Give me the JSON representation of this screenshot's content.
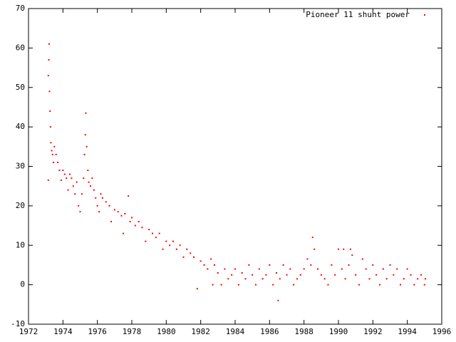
{
  "chart_data": {
    "type": "scatter",
    "x": [
      1973.15,
      1973.18,
      1973.2,
      1973.22,
      1973.25,
      1973.28,
      1973.3,
      1973.35,
      1973.4,
      1973.45,
      1973.15,
      1973.5,
      1973.6,
      1973.7,
      1973.8,
      1973.9,
      1974,
      1974.1,
      1974.2,
      1974.3,
      1974.4,
      1974.5,
      1974.6,
      1974.7,
      1974.8,
      1974.9,
      1975,
      1975.1,
      1975.2,
      1975.25,
      1975.3,
      1975.33,
      1975.38,
      1975.45,
      1975.5,
      1975.6,
      1975.7,
      1975.8,
      1975.9,
      1976,
      1976.1,
      1976.2,
      1976.3,
      1976.5,
      1976.7,
      1976.8,
      1977,
      1977.2,
      1977.4,
      1977.5,
      1977.6,
      1977.8,
      1977.9,
      1978,
      1978.2,
      1978.4,
      1978.6,
      1978.8,
      1979,
      1979.2,
      1979.4,
      1979.6,
      1979.8,
      1980,
      1980.2,
      1980.4,
      1980.6,
      1980.8,
      1981,
      1981.2,
      1981.4,
      1981.6,
      1981.8,
      1982,
      1982.2,
      1982.4,
      1982.6,
      1982.7,
      1982.8,
      1983,
      1983.2,
      1983.4,
      1983.6,
      1983.8,
      1984,
      1984.2,
      1984.4,
      1984.6,
      1984.8,
      1985,
      1985.2,
      1985.4,
      1985.6,
      1985.8,
      1986,
      1986.2,
      1986.4,
      1986.5,
      1986.6,
      1986.8,
      1987,
      1987.2,
      1987.4,
      1987.6,
      1987.8,
      1988,
      1988.2,
      1988.4,
      1988.5,
      1988.6,
      1988.8,
      1989,
      1989.2,
      1989.4,
      1989.6,
      1989.8,
      1990,
      1990.2,
      1990.3,
      1990.4,
      1990.6,
      1990.7,
      1990.8,
      1991,
      1991.2,
      1991.4,
      1991.6,
      1991.8,
      1992,
      1992.2,
      1992.4,
      1992.6,
      1992.8,
      1993,
      1993.2,
      1993.4,
      1993.6,
      1993.8,
      1994,
      1994.2,
      1994.4,
      1994.6,
      1994.8,
      1995,
      1995.05
    ],
    "series": [
      {
        "name": "Pioneer 11 shunt power",
        "color": "#ff0000",
        "values": [
          53,
          57,
          61,
          49,
          44,
          40,
          36,
          34,
          33,
          31,
          26.5,
          35,
          33,
          31,
          29,
          26.5,
          29,
          28,
          27,
          24,
          28,
          27,
          25,
          23,
          26,
          20,
          18.5,
          23,
          27,
          33,
          38,
          43.5,
          35,
          29,
          26,
          25,
          27,
          24,
          22,
          20,
          18.5,
          23,
          22,
          21,
          20,
          16,
          19,
          18.5,
          17.5,
          13,
          18,
          22.5,
          16,
          17,
          15,
          16,
          14.5,
          11,
          14,
          13,
          12,
          13,
          9,
          11,
          10,
          11,
          9,
          10,
          7,
          9,
          8,
          7,
          -1,
          6,
          5,
          4,
          6.5,
          0,
          5,
          3,
          0,
          4,
          1.5,
          2.5,
          4,
          0,
          3,
          1.5,
          5,
          2.5,
          0,
          4,
          1.5,
          2.5,
          5,
          0,
          3,
          -4,
          1.5,
          5,
          2.5,
          4,
          0,
          1.5,
          2.5,
          4,
          6.5,
          5,
          12,
          9,
          4,
          2.5,
          1.5,
          0,
          5,
          2.5,
          9,
          4,
          9,
          1.5,
          5,
          9,
          7.5,
          2.5,
          0,
          6.5,
          4,
          1.5,
          5,
          2.5,
          0,
          4,
          1.5,
          5,
          2.5,
          4,
          0,
          1.5,
          4,
          2.5,
          0,
          1.5,
          2.5,
          0,
          1.5
        ]
      }
    ],
    "xlim": [
      1972,
      1996
    ],
    "xticks": [
      1972,
      1974,
      1976,
      1978,
      1980,
      1982,
      1984,
      1986,
      1988,
      1990,
      1992,
      1994,
      1996
    ],
    "ylim": [
      -10,
      70
    ],
    "yticks": [
      -10,
      0,
      10,
      20,
      30,
      40,
      50,
      60,
      70
    ],
    "legend": "top-right"
  }
}
